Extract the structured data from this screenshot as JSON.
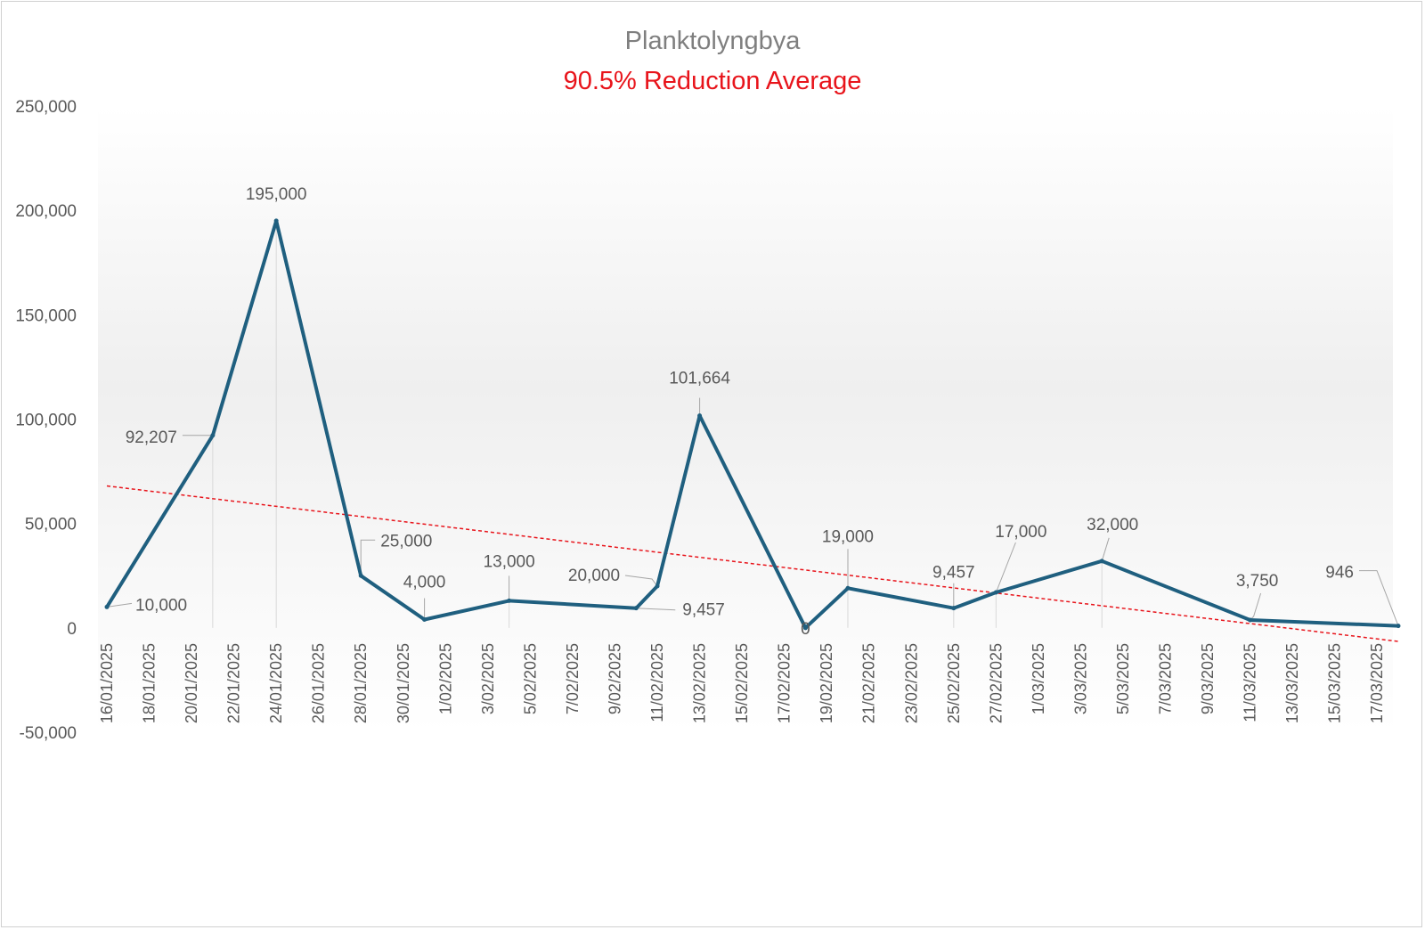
{
  "chart_data": {
    "type": "line",
    "title": "Planktolyngbya",
    "subtitle": "90.5% Reduction Average",
    "xlabel": "",
    "ylabel": "",
    "ylim": [
      -50000,
      250000
    ],
    "y_ticks": [
      "250,000",
      "200,000",
      "150,000",
      "100,000",
      "50,000",
      "0",
      "-50,000"
    ],
    "y_tick_values": [
      250000,
      200000,
      150000,
      100000,
      50000,
      0,
      -50000
    ],
    "x_range": [
      "16/01/2025",
      "18/03/2025"
    ],
    "x_ticks": [
      "16/01/2025",
      "18/01/2025",
      "20/01/2025",
      "22/01/2025",
      "24/01/2025",
      "26/01/2025",
      "28/01/2025",
      "30/01/2025",
      "1/02/2025",
      "3/02/2025",
      "5/02/2025",
      "7/02/2025",
      "9/02/2025",
      "11/02/2025",
      "13/02/2025",
      "15/02/2025",
      "17/02/2025",
      "19/02/2025",
      "21/02/2025",
      "23/02/2025",
      "25/02/2025",
      "27/02/2025",
      "1/03/2025",
      "3/03/2025",
      "5/03/2025",
      "7/03/2025",
      "9/03/2025",
      "11/03/2025",
      "13/03/2025",
      "15/03/2025",
      "17/03/2025"
    ],
    "series": [
      {
        "name": "",
        "color": "#1f5f7f",
        "points": [
          {
            "x": "16/01/2025",
            "y": 10000,
            "label": "10,000"
          },
          {
            "x": "21/01/2025",
            "y": 92207,
            "label": "92,207"
          },
          {
            "x": "24/01/2025",
            "y": 195000,
            "label": "195,000"
          },
          {
            "x": "28/01/2025",
            "y": 25000,
            "label": "25,000"
          },
          {
            "x": "31/01/2025",
            "y": 4000,
            "label": "4,000"
          },
          {
            "x": "4/02/2025",
            "y": 13000,
            "label": "13,000"
          },
          {
            "x": "10/02/2025",
            "y": 9457,
            "label": "9,457"
          },
          {
            "x": "11/02/2025",
            "y": 20000,
            "label": "20,000"
          },
          {
            "x": "13/02/2025",
            "y": 101664,
            "label": "101,664"
          },
          {
            "x": "18/02/2025",
            "y": 0,
            "label": "0"
          },
          {
            "x": "20/02/2025",
            "y": 19000,
            "label": "19,000"
          },
          {
            "x": "25/02/2025",
            "y": 9457,
            "label": "9,457"
          },
          {
            "x": "27/02/2025",
            "y": 17000,
            "label": "17,000"
          },
          {
            "x": "4/03/2025",
            "y": 32000,
            "label": "32,000"
          },
          {
            "x": "11/03/2025",
            "y": 3750,
            "label": "3,750"
          },
          {
            "x": "18/03/2025",
            "y": 946,
            "label": "946"
          }
        ]
      }
    ],
    "trendline": {
      "type": "linear",
      "color": "#e8141b",
      "style": "dotted",
      "start": {
        "x": "16/01/2025",
        "y": 68000
      },
      "end": {
        "x": "18/03/2025",
        "y": -6500
      }
    },
    "grid": false,
    "legend": "none"
  }
}
